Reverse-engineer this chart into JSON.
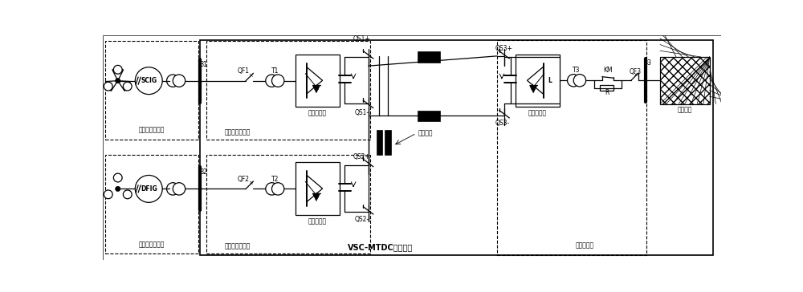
{
  "bg_color": "#ffffff",
  "labels": {
    "SCIG": "SCIG",
    "DFIG": "DFIG",
    "wind1": "鼠笼定速风电场",
    "wind2": "双馈变速风电场",
    "station1": "第一送端换流站",
    "station2": "第二送端换流站",
    "station3": "受端换流站",
    "conv1": "第一换流器",
    "conv2": "第二换流器",
    "conv3": "第三换流器",
    "cable": "直流电缆",
    "system": "VSC-MTDC输电系统",
    "acgrid": "交流电网",
    "B1": "B1",
    "B2": "B2",
    "B3": "B3",
    "QF1": "QF1",
    "QF2": "QF2",
    "QF3": "QF3",
    "T1": "T1",
    "T2": "T2",
    "T3": "T3",
    "KM": "KM",
    "QS1p": "QS1+",
    "QS1m": "QS1-",
    "QS2p": "QS2+",
    "QS2m": "QS2-",
    "QS3p": "QS3+",
    "QS3m": "QS3-",
    "R": "R",
    "L": "L"
  }
}
